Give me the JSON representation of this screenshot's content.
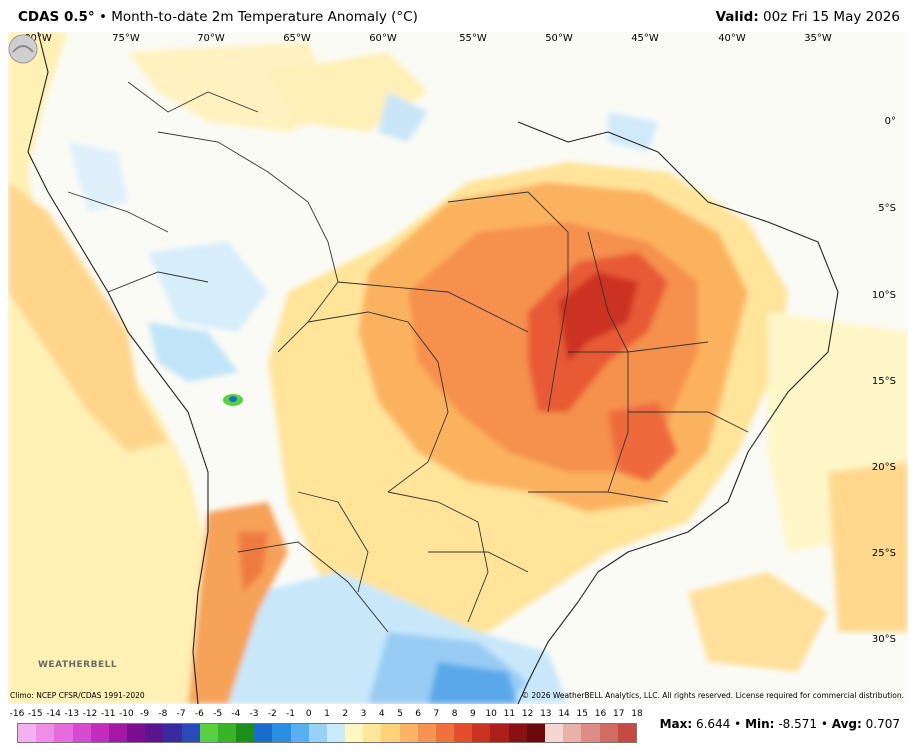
{
  "header": {
    "product": "CDAS 0.5°",
    "separator": "•",
    "title": "Month-to-date 2m Temperature Anomaly (°C)",
    "valid_label": "Valid:",
    "valid_value": "00z Fri 15 May 2026"
  },
  "axes": {
    "longitudes": [
      "80°W",
      "75°W",
      "70°W",
      "65°W",
      "60°W",
      "55°W",
      "50°W",
      "45°W",
      "40°W",
      "35°W"
    ],
    "latitudes": [
      "0°",
      "5°S",
      "10°S",
      "15°S",
      "20°S",
      "25°S",
      "30°S"
    ]
  },
  "footer": {
    "climo": "Climo: NCEP CFSR/CDAS 1991-2020",
    "copyright": "© 2026 WeatherBELL Analytics, LLC. All rights reserved. License required for commercial distribution.",
    "logo_text": "WEATHERBELL"
  },
  "colorbar": {
    "labels": [
      "-16",
      "-15",
      "-14",
      "-13",
      "-12",
      "-11",
      "-10",
      "-9",
      "-8",
      "-7",
      "-6",
      "-5",
      "-4",
      "-3",
      "-2",
      "-1",
      "0",
      "1",
      "2",
      "3",
      "4",
      "5",
      "6",
      "7",
      "8",
      "9",
      "10",
      "11",
      "12",
      "13",
      "14",
      "15",
      "16",
      "17",
      "18"
    ],
    "colors": [
      "#f4b0f0",
      "#ee8ee6",
      "#e46cdc",
      "#d84ace",
      "#c22ebb",
      "#a418a4",
      "#7a1090",
      "#5a1490",
      "#3a2aa0",
      "#2a4ab8",
      "#5ad040",
      "#3ab22a",
      "#1e8e1a",
      "#1a6ad0",
      "#2a8ee4",
      "#58b0ee",
      "#98d0f6",
      "#c8ecfc",
      "#fff6c2",
      "#ffe69a",
      "#ffd27a",
      "#fbb464",
      "#f69252",
      "#f0703e",
      "#e44e2e",
      "#cc3222",
      "#ae1e1a",
      "#8a1014",
      "#6a0a0c",
      "#f4d6d2",
      "#e8b2aa",
      "#dc8e86",
      "#d06c64",
      "#c44a44"
    ]
  },
  "stats": {
    "max_label": "Max:",
    "max_value": "6.644",
    "min_label": "Min:",
    "min_value": "-8.571",
    "avg_label": "Avg:",
    "avg_value": "0.707",
    "separator": "•"
  }
}
